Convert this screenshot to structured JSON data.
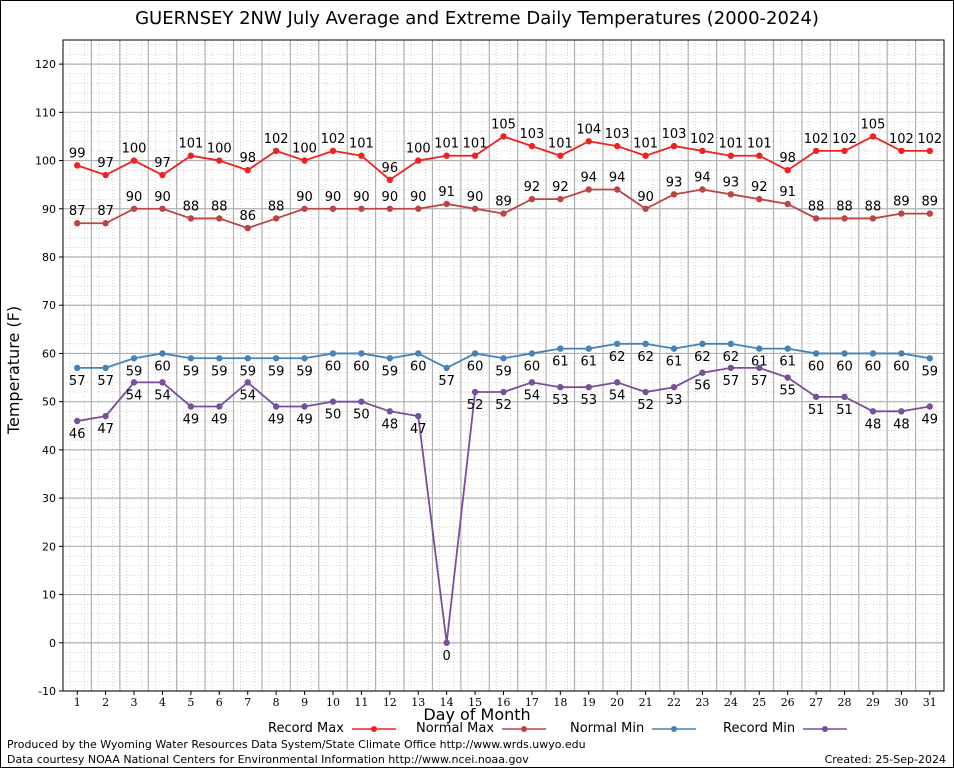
{
  "chart_data": {
    "type": "line",
    "title": "GUERNSEY 2NW July Average and Extreme Daily Temperatures (2000-2024)",
    "xlabel": "Day of Month",
    "ylabel": "Temperature (F)",
    "ylim": [
      -10,
      125
    ],
    "yticks": [
      -10,
      0,
      10,
      20,
      30,
      40,
      50,
      60,
      70,
      80,
      90,
      100,
      110,
      120
    ],
    "grid": true,
    "x": [
      1,
      2,
      3,
      4,
      5,
      6,
      7,
      8,
      9,
      10,
      11,
      12,
      13,
      14,
      15,
      16,
      17,
      18,
      19,
      20,
      21,
      22,
      23,
      24,
      25,
      26,
      27,
      28,
      29,
      30,
      31
    ],
    "series": [
      {
        "name": "Record Max",
        "color": "#ee2222",
        "values": [
          99,
          97,
          100,
          97,
          101,
          100,
          98,
          102,
          100,
          102,
          101,
          96,
          100,
          101,
          101,
          105,
          103,
          101,
          104,
          103,
          101,
          103,
          102,
          101,
          101,
          98,
          102,
          102,
          105,
          102,
          102
        ]
      },
      {
        "name": "Normal Max",
        "color": "#bb4444",
        "values": [
          87,
          87,
          90,
          90,
          88,
          88,
          86,
          88,
          90,
          90,
          90,
          90,
          90,
          91,
          90,
          89,
          92,
          92,
          94,
          94,
          90,
          93,
          94,
          93,
          92,
          91,
          88,
          88,
          88,
          89,
          89
        ]
      },
      {
        "name": "Normal Min",
        "color": "#4682b4",
        "values": [
          57,
          57,
          59,
          60,
          59,
          59,
          59,
          59,
          59,
          60,
          60,
          59,
          60,
          57,
          60,
          59,
          60,
          61,
          61,
          62,
          62,
          61,
          62,
          62,
          61,
          61,
          60,
          60,
          60,
          60,
          59
        ]
      },
      {
        "name": "Record Min",
        "color": "#7a4f9a",
        "values": [
          46,
          47,
          54,
          54,
          49,
          49,
          54,
          49,
          49,
          50,
          50,
          48,
          47,
          0,
          52,
          52,
          54,
          53,
          53,
          54,
          52,
          53,
          56,
          57,
          57,
          55,
          51,
          51,
          48,
          48,
          49
        ]
      }
    ],
    "legend_position": "bottom"
  },
  "footer": {
    "produced_by": "Produced by the Wyoming Water Resources Data System/State Climate Office http://www.wrds.uwyo.edu",
    "courtesy": "Data courtesy NOAA National Centers for Environmental Information http://www.ncei.noaa.gov",
    "created": "Created: 25-Sep-2024"
  }
}
